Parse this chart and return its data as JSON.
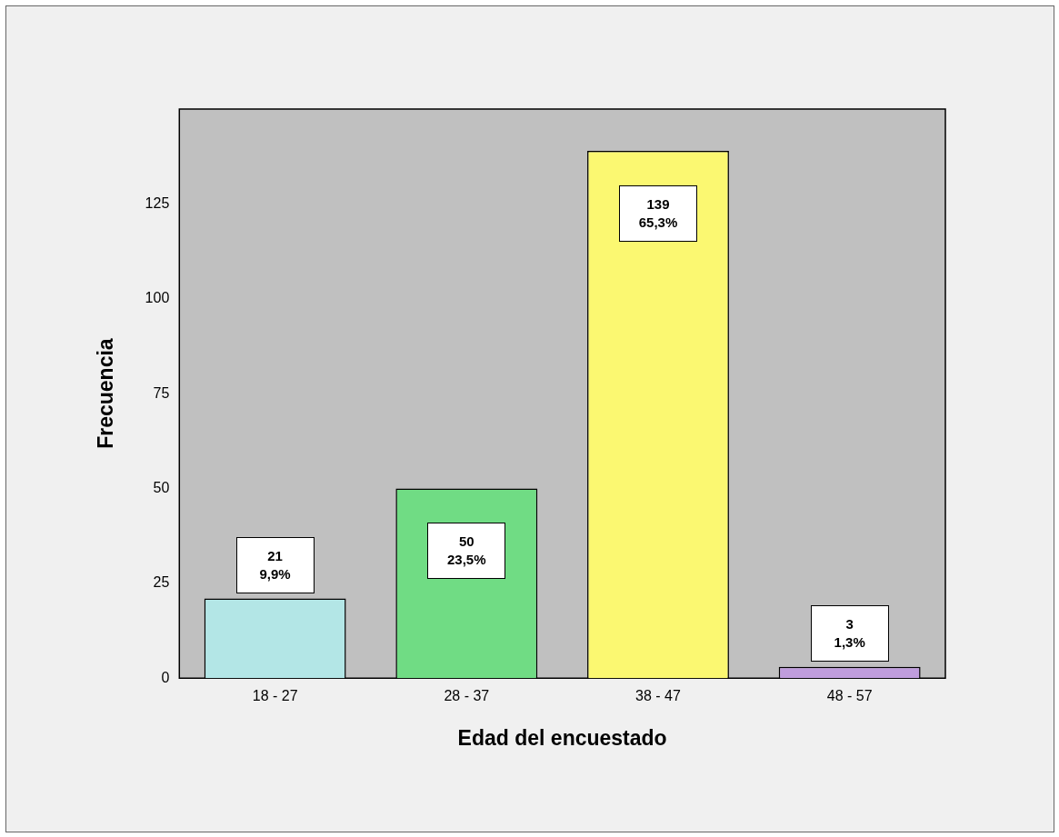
{
  "chart_data": {
    "type": "bar",
    "categories": [
      "18 - 27",
      "28 - 37",
      "38 - 47",
      "48 - 57"
    ],
    "values": [
      21,
      50,
      139,
      3
    ],
    "colors": [
      "#b3e6e6",
      "#70dc84",
      "#fbf871",
      "#c09ddd"
    ],
    "value_labels": [
      "21\n9,9%",
      "50\n23,5%",
      "139\n65,3%",
      "3\n1,3%"
    ],
    "xlabel": "Edad del encuestado",
    "ylabel": "Frecuencia",
    "ylim": [
      0,
      150
    ],
    "yticks": [
      0,
      25,
      50,
      75,
      100,
      125
    ],
    "grid": false,
    "legend": false
  }
}
